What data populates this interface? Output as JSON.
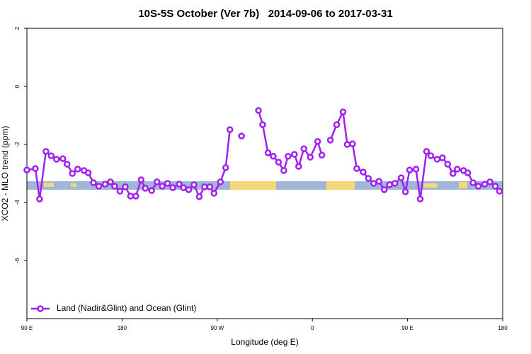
{
  "chart_data": {
    "type": "line",
    "title": "10S-5S October (Ver 7b)   2014-09-06 to 2017-03-31",
    "x_label": "Longitude (deg E)",
    "y_label": "XCO2 - MLO trend (ppm)",
    "xlim": [
      90,
      540
    ],
    "ylim": [
      -8,
      2
    ],
    "xticks": [
      {
        "value": 90,
        "label": "90 E"
      },
      180,
      {
        "value": 270,
        "label": "90 W"
      },
      {
        "value": 360,
        "label": "0"
      },
      {
        "value": 450,
        "label": "90 E"
      },
      {
        "value": 540,
        "label": "180"
      }
    ],
    "yticks": [
      2,
      0,
      -2,
      -4,
      -6
    ],
    "legend": "bottom-left",
    "x": [
      90,
      98,
      102,
      108,
      113,
      118,
      124,
      128,
      133,
      138,
      144,
      148,
      153,
      158,
      164,
      169,
      173,
      178,
      183,
      188,
      193,
      198,
      202,
      208,
      213,
      218,
      223,
      228,
      234,
      238,
      243,
      248,
      253,
      258,
      263,
      267,
      273,
      278,
      282,
      287,
      293,
      301,
      309,
      313,
      318,
      323,
      328,
      333,
      337,
      343,
      347,
      352,
      358,
      365,
      369,
      373,
      377,
      383,
      389,
      393,
      398,
      402,
      408,
      413,
      418,
      423,
      428,
      433,
      438,
      444,
      448,
      452,
      458,
      462,
      468,
      472,
      478,
      483,
      488,
      493,
      497,
      503,
      507,
      512,
      517,
      523,
      528,
      533,
      537
    ],
    "series": [
      {
        "name": "Land (Nadir&Glint) and Ocean (Glint)",
        "color": "#a020f0",
        "values": [
          -2.88,
          -2.83,
          -3.88,
          -2.24,
          -2.39,
          -2.51,
          -2.49,
          -2.68,
          -3.0,
          -2.85,
          -2.9,
          -2.98,
          -3.32,
          -3.44,
          -3.37,
          -3.29,
          -3.44,
          -3.61,
          -3.46,
          -3.78,
          -3.78,
          -3.22,
          -3.51,
          -3.59,
          -3.29,
          -3.44,
          -3.34,
          -3.49,
          -3.37,
          -3.49,
          -3.56,
          -3.39,
          -3.8,
          -3.46,
          -3.46,
          -3.68,
          -3.29,
          -2.8,
          -1.49,
          null,
          -1.71,
          null,
          -0.83,
          -1.32,
          -2.29,
          -2.41,
          -2.61,
          -2.9,
          -2.41,
          -2.34,
          -2.76,
          -2.15,
          -2.44,
          -1.9,
          -2.37,
          null,
          -1.85,
          -1.32,
          -0.88,
          -2.0,
          -1.98,
          -2.83,
          -2.95,
          -3.17,
          -3.34,
          -3.27,
          -3.56,
          -3.39,
          -3.34,
          -3.15,
          -3.63,
          -2.88,
          -2.85,
          -3.88,
          -2.24,
          -2.39,
          -2.51,
          -2.46,
          -2.68,
          -3.0,
          -2.85,
          -2.9,
          -2.98,
          -3.32,
          -3.44,
          -3.37,
          -3.29,
          -3.44,
          -3.61
        ]
      }
    ]
  }
}
